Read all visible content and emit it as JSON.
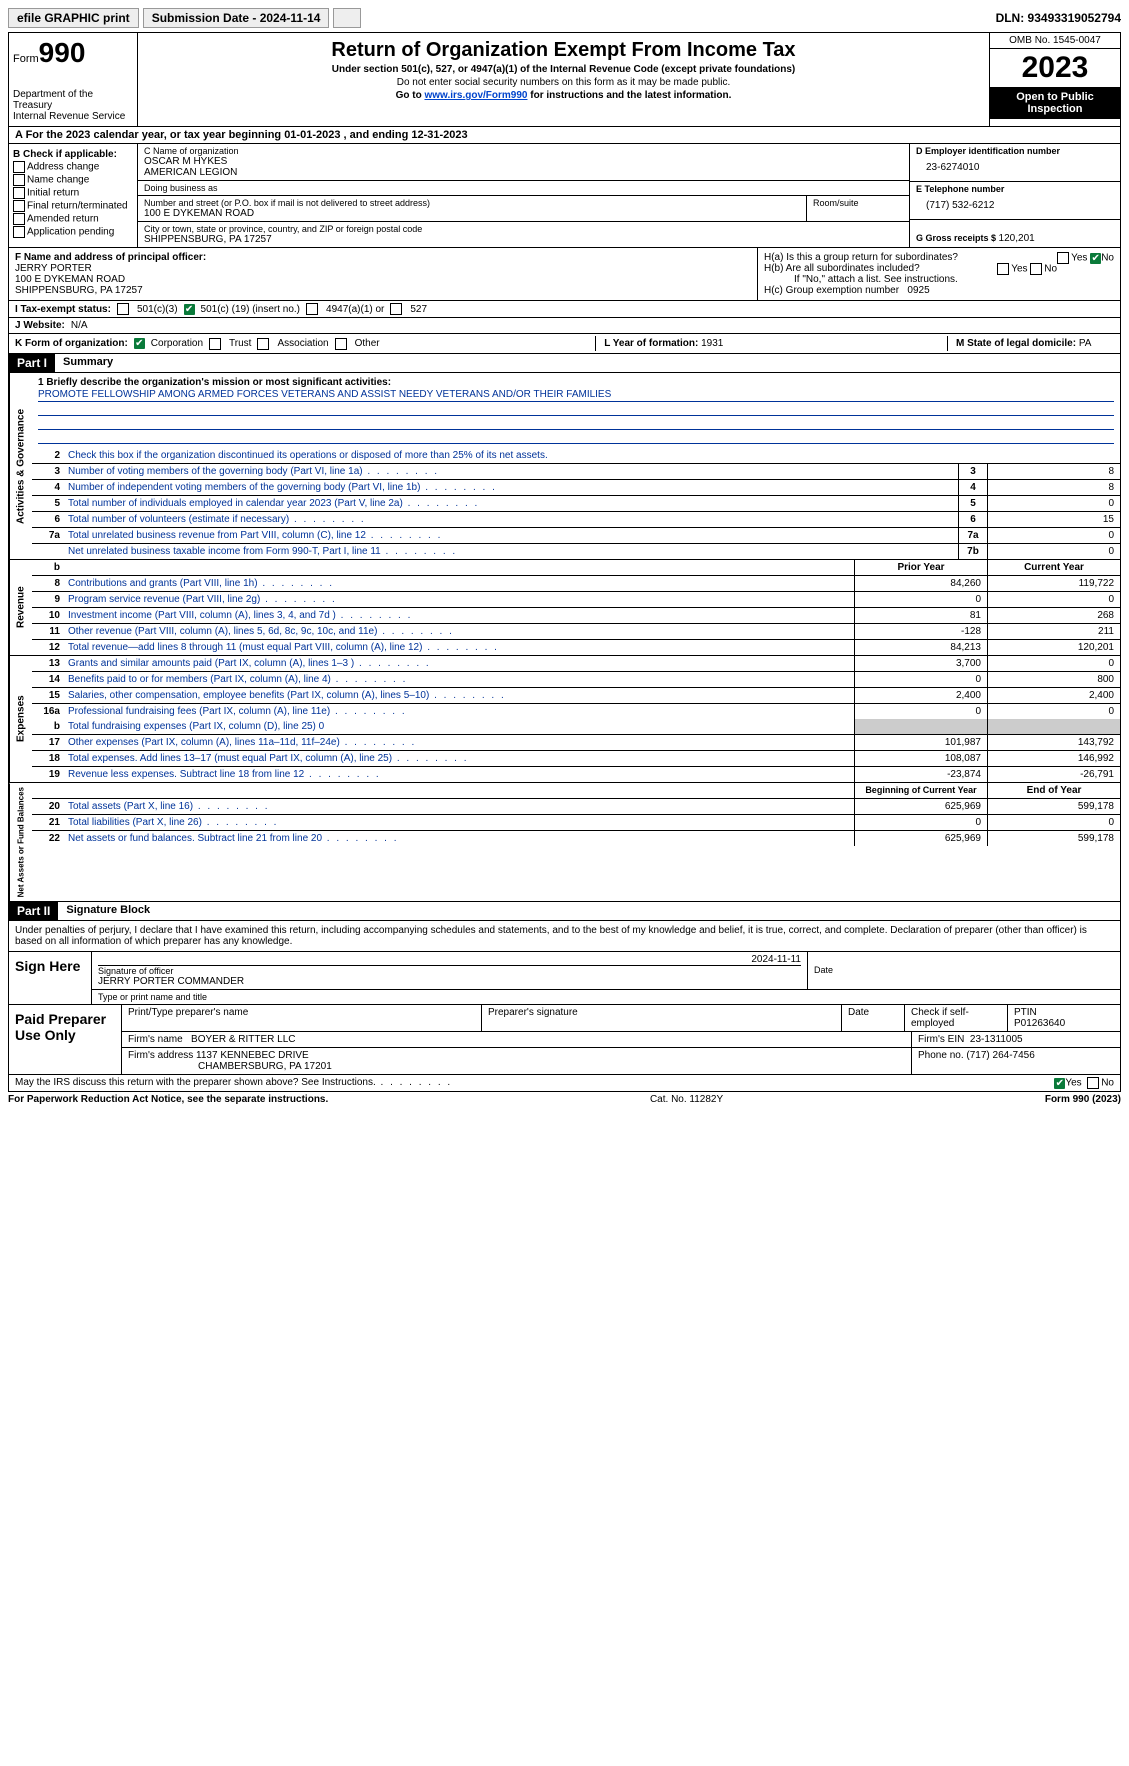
{
  "topbar": {
    "efile": "efile GRAPHIC print",
    "submission_label": "Submission Date - 2024-11-14",
    "dln_label": "DLN: 93493319052794"
  },
  "header": {
    "form_label": "Form",
    "form_num": "990",
    "dept1": "Department of the Treasury",
    "dept2": "Internal Revenue Service",
    "title": "Return of Organization Exempt From Income Tax",
    "sub1": "Under section 501(c), 527, or 4947(a)(1) of the Internal Revenue Code (except private foundations)",
    "sub2": "Do not enter social security numbers on this form as it may be made public.",
    "sub3_pre": "Go to ",
    "sub3_link": "www.irs.gov/Form990",
    "sub3_post": " for instructions and the latest information.",
    "omb": "OMB No. 1545-0047",
    "year": "2023",
    "inspect": "Open to Public Inspection"
  },
  "row_a": "A For the 2023 calendar year, or tax year beginning 01-01-2023    , and ending 12-31-2023",
  "col_b": {
    "title": "B Check if applicable:",
    "opts": [
      "Address change",
      "Name change",
      "Initial return",
      "Final return/terminated",
      "Amended return",
      "Application pending"
    ]
  },
  "col_c": {
    "name_lbl": "C Name of organization",
    "name1": "OSCAR M HYKES",
    "name2": "AMERICAN LEGION",
    "dba_lbl": "Doing business as",
    "dba": "",
    "addr_lbl": "Number and street (or P.O. box if mail is not delivered to street address)",
    "addr": "100 E DYKEMAN ROAD",
    "room_lbl": "Room/suite",
    "city_lbl": "City or town, state or province, country, and ZIP or foreign postal code",
    "city": "SHIPPENSBURG, PA  17257"
  },
  "col_de": {
    "d_lbl": "D Employer identification number",
    "d_val": "23-6274010",
    "e_lbl": "E Telephone number",
    "e_val": "(717) 532-6212",
    "g_lbl": "G Gross receipts $ ",
    "g_val": "120,201"
  },
  "section_f": {
    "lbl": "F  Name and address of principal officer:",
    "name": "JERRY PORTER",
    "addr1": "100 E DYKEMAN ROAD",
    "addr2": "SHIPPENSBURG, PA  17257"
  },
  "section_h": {
    "ha": "H(a)  Is this a group return for subordinates?",
    "hb": "H(b)  Are all subordinates included?",
    "hb_note": "If \"No,\" attach a list. See instructions.",
    "hc": "H(c)  Group exemption number",
    "hc_val": "0925",
    "yes": "Yes",
    "no": "No"
  },
  "status": {
    "lbl": "I   Tax-exempt status:",
    "o1": "501(c)(3)",
    "o2_pre": "501(c) (",
    "o2_num": "19",
    "o2_post": ") (insert no.)",
    "o3": "4947(a)(1) or",
    "o4": "527"
  },
  "website": {
    "lbl": "J   Website:",
    "val": "N/A"
  },
  "form_org": {
    "lbl": "K Form of organization:",
    "o1": "Corporation",
    "o2": "Trust",
    "o3": "Association",
    "o4": "Other",
    "l_lbl": "L Year of formation: ",
    "l_val": "1931",
    "m_lbl": "M State of legal domicile: ",
    "m_val": "PA"
  },
  "part1": {
    "bar": "Part I",
    "title": "Summary",
    "line1_lbl": "1   Briefly describe the organization's mission or most significant activities:",
    "line1_text": "PROMOTE FELLOWSHIP AMONG ARMED FORCES VETERANS AND ASSIST NEEDY VETERANS AND/OR THEIR FAMILIES",
    "line2": "Check this box        if the organization discontinued its operations or disposed of more than 25% of its net assets.",
    "side_ag": "Activities & Governance",
    "side_rev": "Revenue",
    "side_exp": "Expenses",
    "side_na": "Net Assets or Fund Balances",
    "hdr_prior": "Prior Year",
    "hdr_current": "Current Year",
    "hdr_beg": "Beginning of Current Year",
    "hdr_end": "End of Year",
    "lines_top": [
      {
        "n": "3",
        "d": "Number of voting members of the governing body (Part VI, line 1a)",
        "b": "3",
        "v": "8"
      },
      {
        "n": "4",
        "d": "Number of independent voting members of the governing body (Part VI, line 1b)",
        "b": "4",
        "v": "8"
      },
      {
        "n": "5",
        "d": "Total number of individuals employed in calendar year 2023 (Part V, line 2a)",
        "b": "5",
        "v": "0"
      },
      {
        "n": "6",
        "d": "Total number of volunteers (estimate if necessary)",
        "b": "6",
        "v": "15"
      },
      {
        "n": "7a",
        "d": "Total unrelated business revenue from Part VIII, column (C), line 12",
        "b": "7a",
        "v": "0"
      },
      {
        "n": "",
        "d": "Net unrelated business taxable income from Form 990-T, Part I, line 11",
        "b": "7b",
        "v": "0"
      }
    ],
    "lines_rev": [
      {
        "n": "8",
        "d": "Contributions and grants (Part VIII, line 1h)",
        "p": "84,260",
        "c": "119,722"
      },
      {
        "n": "9",
        "d": "Program service revenue (Part VIII, line 2g)",
        "p": "0",
        "c": "0"
      },
      {
        "n": "10",
        "d": "Investment income (Part VIII, column (A), lines 3, 4, and 7d )",
        "p": "81",
        "c": "268"
      },
      {
        "n": "11",
        "d": "Other revenue (Part VIII, column (A), lines 5, 6d, 8c, 9c, 10c, and 11e)",
        "p": "-128",
        "c": "211"
      },
      {
        "n": "12",
        "d": "Total revenue—add lines 8 through 11 (must equal Part VIII, column (A), line 12)",
        "p": "84,213",
        "c": "120,201"
      }
    ],
    "lines_exp": [
      {
        "n": "13",
        "d": "Grants and similar amounts paid (Part IX, column (A), lines 1–3 )",
        "p": "3,700",
        "c": "0"
      },
      {
        "n": "14",
        "d": "Benefits paid to or for members (Part IX, column (A), line 4)",
        "p": "0",
        "c": "800"
      },
      {
        "n": "15",
        "d": "Salaries, other compensation, employee benefits (Part IX, column (A), lines 5–10)",
        "p": "2,400",
        "c": "2,400"
      },
      {
        "n": "16a",
        "d": "Professional fundraising fees (Part IX, column (A), line 11e)",
        "p": "0",
        "c": "0"
      }
    ],
    "line_b": {
      "n": "b",
      "d": "Total fundraising expenses (Part IX, column (D), line 25) 0"
    },
    "lines_exp2": [
      {
        "n": "17",
        "d": "Other expenses (Part IX, column (A), lines 11a–11d, 11f–24e)",
        "p": "101,987",
        "c": "143,792"
      },
      {
        "n": "18",
        "d": "Total expenses. Add lines 13–17 (must equal Part IX, column (A), line 25)",
        "p": "108,087",
        "c": "146,992"
      },
      {
        "n": "19",
        "d": "Revenue less expenses. Subtract line 18 from line 12",
        "p": "-23,874",
        "c": "-26,791"
      }
    ],
    "lines_na": [
      {
        "n": "20",
        "d": "Total assets (Part X, line 16)",
        "p": "625,969",
        "c": "599,178"
      },
      {
        "n": "21",
        "d": "Total liabilities (Part X, line 26)",
        "p": "0",
        "c": "0"
      },
      {
        "n": "22",
        "d": "Net assets or fund balances. Subtract line 21 from line 20",
        "p": "625,969",
        "c": "599,178"
      }
    ]
  },
  "part2": {
    "bar": "Part II",
    "title": "Signature Block",
    "decl": "Under penalties of perjury, I declare that I have examined this return, including accompanying schedules and statements, and to the best of my knowledge and belief, it is true, correct, and complete. Declaration of preparer (other than officer) is based on all information of which preparer has any knowledge.",
    "sign_here": "Sign Here",
    "sig_officer_lbl": "Signature of officer",
    "sig_officer": "JERRY PORTER  COMMANDER",
    "sig_date_lbl": "Date",
    "sig_date": "2024-11-11",
    "type_lbl": "Type or print name and title",
    "paid_lbl": "Paid Preparer Use Only",
    "prep_name_lbl": "Print/Type preparer's name",
    "prep_sig_lbl": "Preparer's signature",
    "date_lbl": "Date",
    "check_lbl": "Check         if self-employed",
    "ptin_lbl": "PTIN",
    "ptin": "P01263640",
    "firm_name_lbl": "Firm's name",
    "firm_name": "BOYER & RITTER LLC",
    "firm_ein_lbl": "Firm's EIN",
    "firm_ein": "23-1311005",
    "firm_addr_lbl": "Firm's address",
    "firm_addr1": "1137 KENNEBEC DRIVE",
    "firm_addr2": "CHAMBERSBURG, PA  17201",
    "phone_lbl": "Phone no.",
    "phone": "(717) 264-7456",
    "discuss": "May the IRS discuss this return with the preparer shown above? See Instructions.",
    "yes": "Yes",
    "no": "No"
  },
  "footer": {
    "left": "For Paperwork Reduction Act Notice, see the separate instructions.",
    "mid": "Cat. No. 11282Y",
    "right": "Form 990 (2023)"
  }
}
